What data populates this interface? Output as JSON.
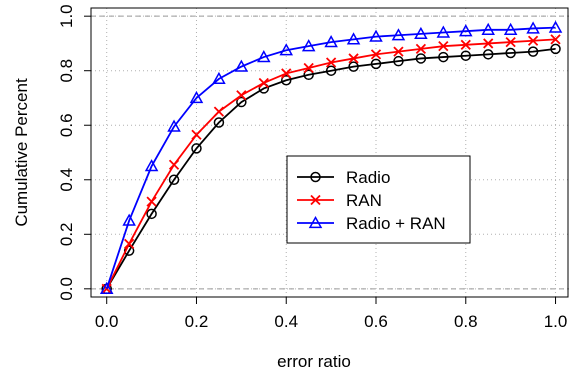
{
  "chart_data": {
    "type": "line",
    "xlabel": "error ratio",
    "ylabel": "Cumulative Percent",
    "xlim": [
      -0.035,
      1.03
    ],
    "ylim": [
      -0.03,
      1.03
    ],
    "x_ticks": [
      "0.0",
      "0.2",
      "0.4",
      "0.6",
      "0.8",
      "1.0"
    ],
    "x_tick_values": [
      0,
      0.2,
      0.4,
      0.6,
      0.8,
      1.0
    ],
    "y_ticks": [
      "0.0",
      "0.2",
      "0.4",
      "0.6",
      "0.8",
      "1.0"
    ],
    "y_tick_values": [
      0,
      0.2,
      0.4,
      0.6,
      0.8,
      1.0
    ],
    "grid": true,
    "legend_position": "center-right",
    "x": [
      0,
      0.05,
      0.1,
      0.15,
      0.2,
      0.25,
      0.3,
      0.35,
      0.4,
      0.45,
      0.5,
      0.55,
      0.6,
      0.65,
      0.7,
      0.75,
      0.8,
      0.85,
      0.9,
      0.95,
      1.0
    ],
    "series": [
      {
        "name": "Radio",
        "color": "#000000",
        "marker": "circle",
        "values": [
          0,
          0.14,
          0.275,
          0.4,
          0.515,
          0.61,
          0.685,
          0.735,
          0.765,
          0.785,
          0.8,
          0.815,
          0.825,
          0.835,
          0.845,
          0.85,
          0.855,
          0.86,
          0.865,
          0.87,
          0.88
        ]
      },
      {
        "name": "RAN",
        "color": "#ff0000",
        "marker": "x",
        "values": [
          0,
          0.165,
          0.32,
          0.455,
          0.565,
          0.65,
          0.71,
          0.755,
          0.79,
          0.81,
          0.83,
          0.845,
          0.86,
          0.87,
          0.88,
          0.89,
          0.895,
          0.9,
          0.905,
          0.91,
          0.915
        ]
      },
      {
        "name": "Radio + RAN",
        "color": "#0000ff",
        "marker": "triangle",
        "values": [
          0,
          0.25,
          0.45,
          0.595,
          0.7,
          0.77,
          0.815,
          0.85,
          0.875,
          0.89,
          0.905,
          0.915,
          0.925,
          0.93,
          0.935,
          0.94,
          0.945,
          0.95,
          0.95,
          0.955,
          0.958
        ]
      }
    ]
  }
}
